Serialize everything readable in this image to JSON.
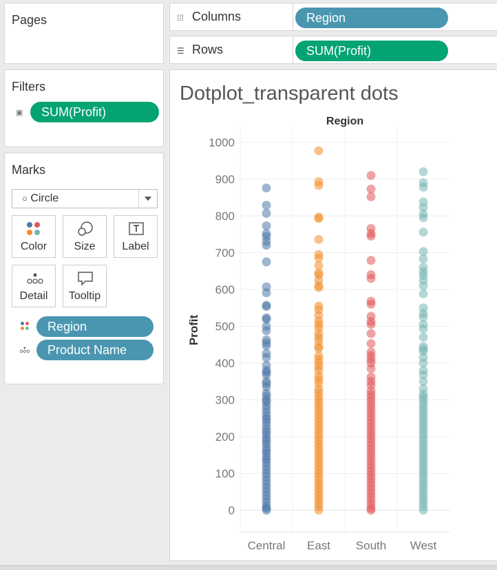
{
  "pages": {
    "title": "Pages"
  },
  "shelves": {
    "columns": {
      "label": "Columns",
      "pill": "Region"
    },
    "rows": {
      "label": "Rows",
      "pill": "SUM(Profit)"
    }
  },
  "filters": {
    "title": "Filters",
    "pill": "SUM(Profit)"
  },
  "marks": {
    "title": "Marks",
    "mark_type": "Circle",
    "buttons": {
      "color": "Color",
      "size": "Size",
      "label": "Label",
      "detail": "Detail",
      "tooltip": "Tooltip"
    },
    "fields": [
      {
        "label": "Region",
        "icon": "color-dots-icon"
      },
      {
        "label": "Product Name",
        "icon": "detail-dots-icon"
      }
    ]
  },
  "colors": {
    "green_pill": "#04a374",
    "blue_pill": "#4a96b0",
    "Central": "#4e79a7",
    "East": "#f28e2b",
    "South": "#e15759",
    "West": "#76b7b2"
  },
  "chart_data": {
    "type": "scatter",
    "title": "Dotplot_transparent dots",
    "xlabel": "Region",
    "ylabel": "Profit",
    "categories": [
      "Central",
      "East",
      "South",
      "West"
    ],
    "ylim": [
      -50,
      1050
    ],
    "yticks": [
      0,
      100,
      200,
      300,
      400,
      500,
      600,
      700,
      800,
      900,
      1000
    ],
    "grid": true,
    "series": [
      {
        "name": "Central",
        "values": [
          876,
          829,
          807,
          773,
          752,
          744,
          731,
          720,
          675,
          607,
          591,
          557,
          554,
          523,
          519,
          500,
          488,
          463,
          455,
          447,
          426,
          415,
          394,
          380,
          375,
          368,
          350,
          344,
          335,
          318,
          310,
          300,
          295,
          285,
          275,
          265,
          255,
          248,
          240,
          230,
          220,
          212,
          205,
          195,
          188,
          180,
          170,
          162,
          155,
          145,
          138,
          130,
          120,
          110,
          100,
          90,
          80,
          70,
          60,
          50,
          40,
          30,
          20,
          10,
          5,
          0
        ]
      },
      {
        "name": "East",
        "values": [
          977,
          893,
          883,
          797,
          793,
          736,
          695,
          685,
          665,
          645,
          640,
          625,
          610,
          605,
          555,
          545,
          530,
          515,
          505,
          495,
          480,
          470,
          460,
          445,
          440,
          420,
          410,
          400,
          390,
          380,
          365,
          355,
          345,
          330,
          320,
          310,
          300,
          290,
          280,
          270,
          260,
          250,
          240,
          230,
          220,
          210,
          200,
          190,
          180,
          170,
          160,
          150,
          140,
          130,
          120,
          110,
          100,
          90,
          80,
          70,
          60,
          50,
          40,
          30,
          20,
          10,
          0
        ]
      },
      {
        "name": "South",
        "values": [
          910,
          873,
          852,
          766,
          752,
          745,
          679,
          640,
          630,
          568,
          560,
          527,
          513,
          505,
          480,
          453,
          430,
          420,
          410,
          400,
          385,
          362,
          350,
          340,
          325,
          315,
          305,
          295,
          285,
          275,
          265,
          255,
          245,
          235,
          225,
          215,
          205,
          195,
          185,
          175,
          165,
          155,
          145,
          135,
          125,
          115,
          105,
          95,
          85,
          75,
          65,
          55,
          45,
          35,
          25,
          15,
          5,
          0
        ]
      },
      {
        "name": "West",
        "values": [
          920,
          890,
          878,
          838,
          823,
          805,
          795,
          756,
          703,
          683,
          660,
          648,
          638,
          625,
          610,
          588,
          550,
          535,
          525,
          505,
          493,
          470,
          445,
          438,
          432,
          415,
          400,
          380,
          368,
          350,
          330,
          315,
          308,
          300,
          290,
          280,
          270,
          260,
          250,
          240,
          230,
          220,
          210,
          200,
          190,
          180,
          170,
          160,
          150,
          140,
          130,
          120,
          110,
          100,
          90,
          80,
          70,
          60,
          50,
          40,
          30,
          20,
          10,
          0
        ]
      }
    ]
  }
}
